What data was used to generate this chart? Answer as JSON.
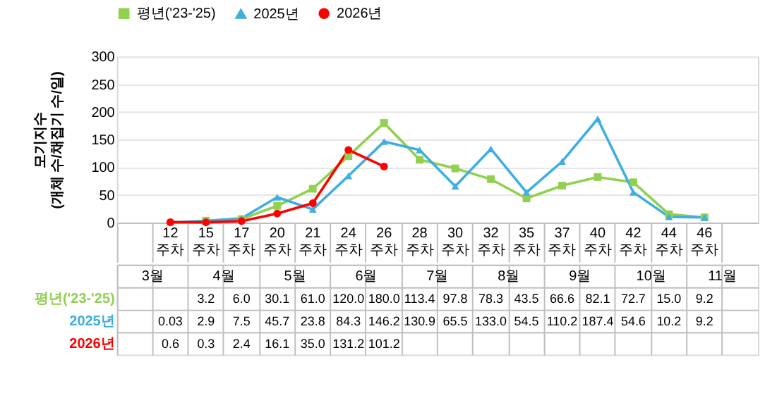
{
  "chart_data": {
    "type": "line",
    "ylabel": "모기지수\n(개체 수/채집기 수/일)",
    "categories": [
      null,
      "12주차",
      "15주차",
      "17주차",
      "20주차",
      "21주차",
      "24주차",
      "26주차",
      "28주차",
      "30주차",
      "32주차",
      "35주차",
      "37주차",
      "40주차",
      "42주차",
      "44주차",
      "46주차",
      null
    ],
    "annotations": [
      "3월",
      "4월",
      "5월",
      "6월",
      "7월",
      "8월",
      "9월",
      "10월",
      "11월"
    ],
    "series": [
      {
        "name": "평년('23-'25)",
        "color": "#92d050",
        "marker": "square",
        "values": [
          null,
          null,
          3.2,
          6.0,
          30.1,
          61.0,
          120.0,
          180.0,
          113.4,
          97.8,
          78.3,
          43.5,
          66.6,
          82.1,
          72.7,
          15.0,
          9.2,
          null
        ],
        "value_labels": [
          null,
          null,
          "3.2",
          "6.0",
          "30.1",
          "61.0",
          "120.0",
          "180.0",
          "113.4",
          "97.8",
          "78.3",
          "43.5",
          "66.6",
          "82.1",
          "72.7",
          "15.0",
          "9.2",
          null
        ]
      },
      {
        "name": "2025년",
        "color": "#3faee0",
        "marker": "triangle",
        "values": [
          null,
          0.03,
          2.9,
          7.5,
          45.7,
          23.8,
          84.3,
          146.2,
          130.9,
          65.5,
          133.0,
          54.5,
          110.2,
          187.4,
          54.6,
          10.2,
          9.2,
          null
        ],
        "value_labels": [
          null,
          "0.03",
          "2.9",
          "7.5",
          "45.7",
          "23.8",
          "84.3",
          "146.2",
          "130.9",
          "65.5",
          "133.0",
          "54.5",
          "110.2",
          "187.4",
          "54.6",
          "10.2",
          "9.2",
          null
        ]
      },
      {
        "name": "2026년",
        "color": "#ff0000",
        "marker": "circle",
        "values": [
          null,
          0.6,
          0.3,
          2.4,
          16.1,
          35.0,
          131.2,
          101.2,
          null,
          null,
          null,
          null,
          null,
          null,
          null,
          null,
          null,
          null
        ],
        "value_labels": [
          null,
          "0.6",
          "0.3",
          "2.4",
          "16.1",
          "35.0",
          "131.2",
          "101.2",
          null,
          null,
          null,
          null,
          null,
          null,
          null,
          null,
          null,
          null
        ]
      }
    ],
    "ylim": [
      0,
      300
    ],
    "yticks": [
      0,
      50,
      100,
      150,
      200,
      250,
      300
    ],
    "grid": "y",
    "legend": "top",
    "line_style": "solid"
  }
}
